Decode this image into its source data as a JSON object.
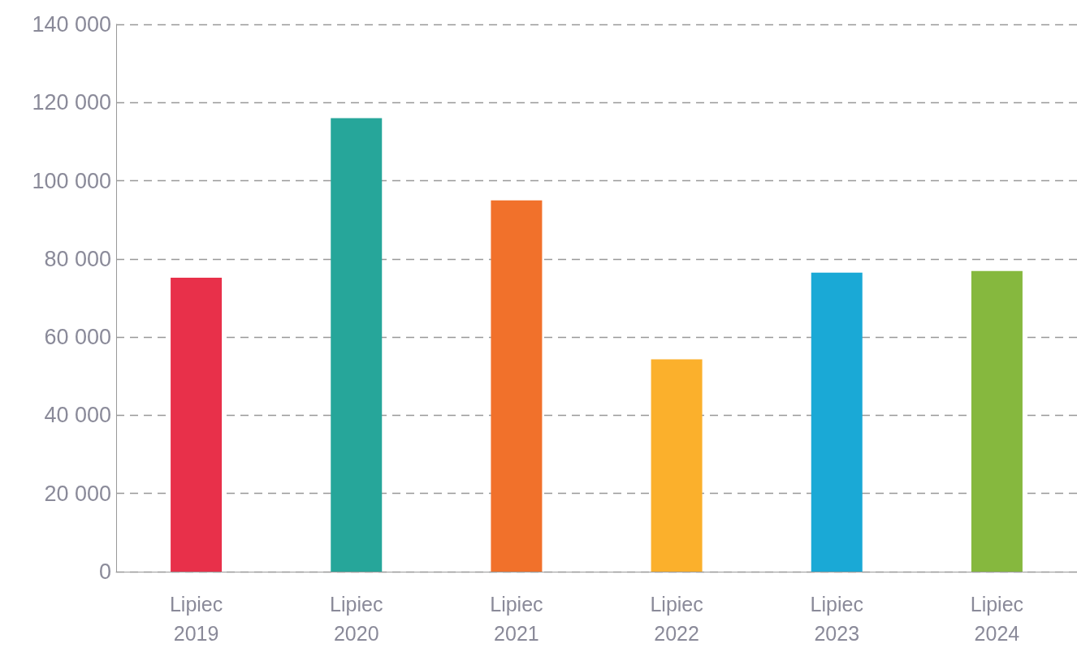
{
  "chart_data": {
    "type": "bar",
    "categories": [
      "Lipiec\n2019",
      "Lipiec\n2020",
      "Lipiec\n2021",
      "Lipiec\n2022",
      "Lipiec\n2023",
      "Lipiec\n2024"
    ],
    "values": [
      75200,
      116000,
      95000,
      54300,
      76500,
      76900
    ],
    "colors": [
      "#e8304a",
      "#26a69a",
      "#f1712b",
      "#fbb02c",
      "#1aa9d6",
      "#86b83e"
    ],
    "ylim": [
      0,
      140000
    ],
    "yticks": [
      {
        "value": 0,
        "label": "0"
      },
      {
        "value": 20000,
        "label": "20 000"
      },
      {
        "value": 40000,
        "label": "40 000"
      },
      {
        "value": 60000,
        "label": "60 000"
      },
      {
        "value": 80000,
        "label": "80 000"
      },
      {
        "value": 100000,
        "label": "100 000"
      },
      {
        "value": 120000,
        "label": "120 000"
      },
      {
        "value": 140000,
        "label": "140 000"
      }
    ],
    "grid": "y"
  }
}
